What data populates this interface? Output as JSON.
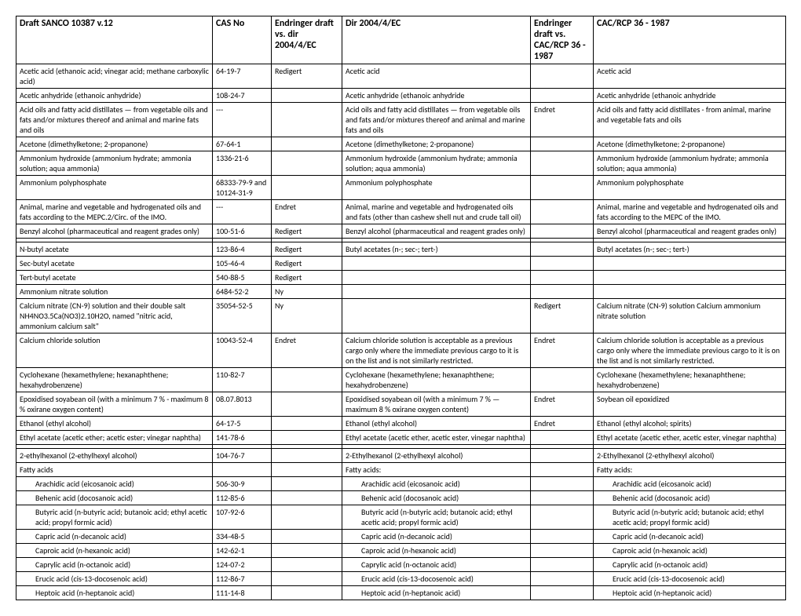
{
  "columns": [
    "Draft SANCO 10387 v.12",
    "CAS No",
    "Endringer draft vs. dir 2004/4/EC",
    "Dir 2004/4/EC",
    "Endringer draft vs. CAC/RCP 36 - 1987",
    "CAC/RCP 36 - 1987"
  ],
  "rows": [
    {
      "c": [
        "Acetic acid (ethanoic acid; vinegar acid; methane carboxylic acid)",
        "64-19-7",
        "Redigert",
        "Acetic acid",
        "",
        "Acetic acid"
      ]
    },
    {
      "c": [
        "Acetic anhydride (ethanoic anhydride)",
        "108-24-7",
        "",
        "Acetic anhydride (ethanoic anhydride",
        "",
        "Acetic anhydride (ethanoic anhydride"
      ]
    },
    {
      "c": [
        "Acid oils and fatty acid distillates — from vegetable oils and fats and/or mixtures thereof and animal and marine fats and oils",
        "---",
        "",
        "Acid oils and fatty acid distillates — from vegetable oils and fats and/or mixtures thereof and animal and marine fats and oils",
        "Endret",
        "Acid oils and fatty acid distillates - from animal, marine and vegetable fats and oils"
      ]
    },
    {
      "c": [
        "Acetone (dimethylketone; 2-propanone)",
        "67-64-1",
        "",
        "Acetone (dimethylketone; 2-propanone)",
        "",
        "Acetone (dimethylketone; 2-propanone)"
      ]
    },
    {
      "c": [
        "Ammonium hydroxide (ammonium hydrate; ammonia solution; aqua ammonia)",
        "1336-21-6",
        "",
        "Ammonium hydroxide (ammonium hydrate; ammonia solution; aqua ammonia)",
        "",
        "Ammonium hydroxide (ammonium hydrate; ammonia solution; aqua ammonia)"
      ]
    },
    {
      "c": [
        "Ammonium polyphosphate",
        "68333-79-9 and 10124-31-9",
        "",
        "Ammonium polyphosphate",
        "",
        "Ammonium polyphosphate"
      ]
    },
    {
      "c": [
        "Animal, marine and vegetable and hydrogenated oils and fats according to the MEPC.2/Circ. of the IMO.",
        "---",
        "Endret",
        "Animal, marine and vegetable and hydrogenated oils and fats (other than cashew shell nut and crude tall oil)",
        "",
        "Animal, marine and vegetable and hydrogenated oils and fats according to the MEPC of the IMO."
      ]
    },
    {
      "c": [
        "Benzyl alcohol (pharmaceutical and reagent grades only)",
        "100-51-6",
        "Redigert",
        "Benzyl alcohol (pharmaceutical and reagent grades only)",
        "",
        "Benzyl alcohol (pharmaceutical and reagent grades only)"
      ]
    },
    {
      "c": [
        "",
        "",
        "",
        "",
        "",
        ""
      ]
    },
    {
      "c": [
        "N-butyl acetate",
        "123-86-4",
        "Redigert",
        "Butyl acetates (n-;  sec-; tert-)",
        "",
        "Butyl acetates (n-;  sec-; tert-)"
      ]
    },
    {
      "c": [
        "Sec-butyl acetate",
        "105-46-4",
        "Redigert",
        "",
        "",
        ""
      ]
    },
    {
      "c": [
        "Tert-butyl acetate",
        "540-88-5",
        "Redigert",
        "",
        "",
        ""
      ]
    },
    {
      "c": [
        "Ammonium nitrate solution",
        "6484-52-2",
        "Ny",
        "",
        "",
        ""
      ]
    },
    {
      "c": [
        "Calcium nitrate (CN-9) solution and their double salt NH4NO3.5Ca(NO3)2.10H2O, named \"nitric acid,  ammonium calcium salt\"",
        "35054-52-5",
        "Ny",
        "",
        "Redigert",
        "Calcium nitrate (CN-9) solution\nCalcium ammonium nitrate solution"
      ]
    },
    {
      "c": [
        "Calcium chloride solution",
        "10043-52-4",
        "Endret",
        "Calcium chloride solution is acceptable as a previous cargo only where the immediate previous cargo to it is on the list and is not similarly restricted.",
        "Endret",
        "Calcium chloride solution is acceptable as a previous cargo only where the immediate previous cargo to it is on the list and is not similarly restricted."
      ]
    },
    {
      "c": [
        "Cyclohexane (hexamethylene; hexanaphthene; hexahydrobenzene)",
        "110-82-7",
        "",
        "Cyclohexane (hexamethylene; hexanaphthene; hexahydrobenzene)",
        "",
        "Cyclohexane (hexamethylene; hexanaphthene; hexahydrobenzene)"
      ]
    },
    {
      "c": [
        "Epoxidised soyabean oil (with a minimum 7 % - maximum 8 % oxirane oxygen content)",
        "08.07.8013",
        "",
        "Epoxidised soyabean oil (with a minimum 7 % — maximum 8 % oxirane oxygen content)",
        "Endret",
        "Soybean oil epoxidized"
      ]
    },
    {
      "c": [
        "Ethanol (ethyl alcohol)",
        "64-17-5",
        "",
        "Ethanol (ethyl alcohol)",
        "Endret",
        "Ethanol (ethyl alcohol; spirits)"
      ]
    },
    {
      "c": [
        "Ethyl acetate (acetic ether; acetic ester; vinegar naphtha)",
        "141-78-6",
        "",
        "Ethyl acetate (acetic ether, acetic ester, vinegar naphtha)",
        "",
        "Ethyl acetate (acetic ether, acetic ester, vinegar naphtha)"
      ]
    },
    {
      "c": [
        "",
        "",
        "",
        "",
        "",
        ""
      ]
    },
    {
      "c": [
        "2-ethylhexanol (2-ethylhexyl alcohol)",
        "104-76-7",
        "",
        "2-Ethylhexanol (2-ethylhexyl alcohol)",
        "",
        "2-Ethylhexanol (2-ethylhexyl alcohol)"
      ]
    },
    {
      "c": [
        "Fatty acids",
        "",
        "",
        "Fatty acids:",
        "",
        "Fatty acids:"
      ]
    },
    {
      "c": [
        "Arachidic acid (eicosanoic acid)",
        "506-30-9",
        "",
        "Arachidic acid (eicosanoic acid)",
        "",
        "Arachidic acid (eicosanoic acid)"
      ],
      "indent": true
    },
    {
      "c": [
        "Behenic acid (docosanoic acid)",
        "112-85-6",
        "",
        "Behenic acid (docosanoic acid)",
        "",
        "Behenic acid (docosanoic acid)"
      ],
      "indent": true
    },
    {
      "c": [
        "Butyric acid (n-butyric acid; butanoic acid; ethyl acetic acid; propyl formic acid)",
        "107-92-6",
        "",
        "Butyric acid (n-butyric acid; butanoic acid; ethyl acetic acid; propyl formic acid)",
        "",
        "Butyric acid (n-butyric acid; butanoic acid; ethyl acetic acid; propyl formic acid)"
      ],
      "indent": true
    },
    {
      "c": [
        "Capric acid (n-decanoic acid)",
        "334-48-5",
        "",
        "Capric acid (n-decanoic acid)",
        "",
        "Capric acid (n-decanoic acid)"
      ],
      "indent": true
    },
    {
      "c": [
        "Caproic acid (n-hexanoic acid)",
        "142-62-1",
        "",
        "Caproic acid (n-hexanoic acid)",
        "",
        "Caproic acid (n-hexanoic acid)"
      ],
      "indent": true
    },
    {
      "c": [
        "Caprylic acid (n-octanoic acid)",
        "124-07-2",
        "",
        "Caprylic acid (n-octanoic acid)",
        "",
        "Caprylic acid (n-octanoic acid)"
      ],
      "indent": true
    },
    {
      "c": [
        "Erucic acid (cis-13-docosenoic acid)",
        "112-86-7",
        "",
        "Erucic acid (cis-13-docosenoic acid)",
        "",
        "Erucic acid (cis-13-docosenoic acid)"
      ],
      "indent": true
    },
    {
      "c": [
        "Heptoic acid (n-heptanoic acid)",
        "111-14-8",
        "",
        "Heptoic acid (n-heptanoic acid)",
        "",
        "Heptoic acid (n-heptanoic acid)"
      ],
      "indent": true
    }
  ]
}
